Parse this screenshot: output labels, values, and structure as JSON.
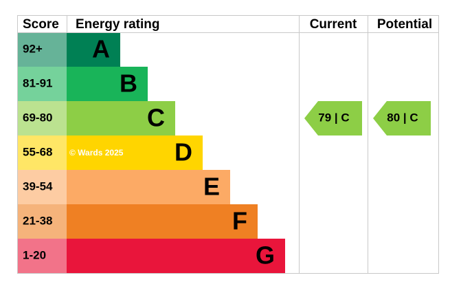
{
  "header": {
    "score": "Score",
    "energy_rating": "Energy rating",
    "current": "Current",
    "potential": "Potential"
  },
  "bands": [
    {
      "score": "92+",
      "letter": "A",
      "color": "#008054"
    },
    {
      "score": "81-91",
      "letter": "B",
      "color": "#19b459"
    },
    {
      "score": "69-80",
      "letter": "C",
      "color": "#8dce46"
    },
    {
      "score": "55-68",
      "letter": "D",
      "color": "#ffd500"
    },
    {
      "score": "39-54",
      "letter": "E",
      "color": "#fcaa65"
    },
    {
      "score": "21-38",
      "letter": "F",
      "color": "#ef8023"
    },
    {
      "score": "1-20",
      "letter": "G",
      "color": "#e9153b"
    }
  ],
  "current": {
    "label": "79 | C"
  },
  "potential": {
    "label": "80 | C"
  },
  "watermark": "© Wards 2025"
}
